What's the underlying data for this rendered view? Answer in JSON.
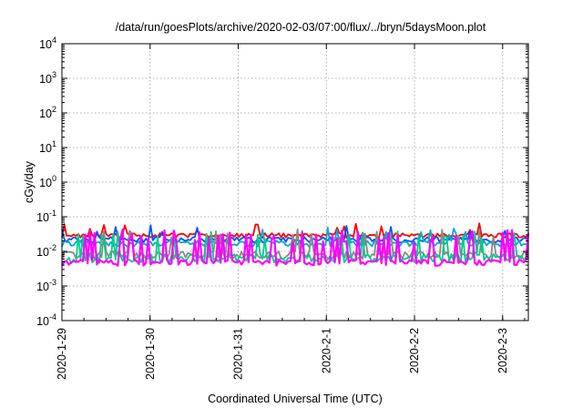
{
  "chart_data": {
    "type": "line",
    "title": "/data/run/goesPlots/archive/2020-02-03/07:00/flux/../bryn/5daysMoon.plot",
    "xlabel": "Coordinated Universal Time (UTC)",
    "ylabel": "cGy/day",
    "y_scale": "log",
    "ylim": [
      0.0001,
      10000
    ],
    "y_ticks": [
      {
        "base": "10",
        "exp": "-4"
      },
      {
        "base": "10",
        "exp": "-3"
      },
      {
        "base": "10",
        "exp": "-2"
      },
      {
        "base": "10",
        "exp": "-1"
      },
      {
        "base": "10",
        "exp": "0"
      },
      {
        "base": "10",
        "exp": "1"
      },
      {
        "base": "10",
        "exp": "2"
      },
      {
        "base": "10",
        "exp": "3"
      },
      {
        "base": "10",
        "exp": "4"
      }
    ],
    "xlim": [
      "2020-01-29T00:00",
      "2020-02-03T07:00"
    ],
    "x_ticks": [
      "2020-1-29",
      "2020-1-30",
      "2020-1-31",
      "2020-2-1",
      "2020-2-2",
      "2020-2-3"
    ],
    "grid": true,
    "legend": "none",
    "series": [
      {
        "color": "#ff0000",
        "base": 0.029,
        "noise": 0.15,
        "spike_prob": 0.05,
        "spike_min": 0.04,
        "spike_max": 0.065,
        "seed": 11
      },
      {
        "color": "#0050ff",
        "base": 0.022,
        "noise": 0.18,
        "spike_prob": 0.07,
        "spike_min": 0.035,
        "spike_max": 0.06,
        "seed": 23
      },
      {
        "color": "#00aacc",
        "base": 0.017,
        "noise": 0.2,
        "spike_prob": 0.06,
        "spike_min": 0.03,
        "spike_max": 0.05,
        "seed": 37
      },
      {
        "color": "#888888",
        "base": 0.008,
        "noise": 0.25,
        "spike_prob": 0.1,
        "spike_min": 0.025,
        "spike_max": 0.045,
        "seed": 41
      },
      {
        "color": "#00cc88",
        "base": 0.0065,
        "noise": 0.3,
        "spike_prob": 0.15,
        "spike_min": 0.02,
        "spike_max": 0.04,
        "seed": 53
      },
      {
        "color": "#ff00ff",
        "base": 0.0048,
        "noise": 0.2,
        "spike_prob": 0.22,
        "spike_min": 0.018,
        "spike_max": 0.045,
        "seed": 67
      }
    ]
  }
}
